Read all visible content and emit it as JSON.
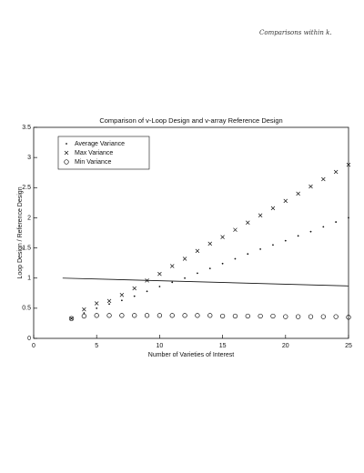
{
  "chart_data": {
    "type": "scatter",
    "title": "Comparison of v-Loop Design and v-array Reference Design",
    "xlabel": "Number of Varieties of Interest",
    "ylabel": "Loop Design / Reference Design",
    "annotation": "Comparisons within k.",
    "xlim": [
      0,
      25
    ],
    "ylim": [
      0,
      3.5
    ],
    "xticks": [
      0,
      5,
      10,
      15,
      20,
      25
    ],
    "yticks": [
      0,
      0.5,
      1,
      1.5,
      2,
      2.5,
      3,
      3.5
    ],
    "legend": "upper left",
    "x": [
      3,
      4,
      5,
      6,
      7,
      8,
      9,
      10,
      11,
      12,
      13,
      14,
      15,
      16,
      17,
      18,
      19,
      20,
      21,
      22,
      23,
      24,
      25
    ],
    "series": [
      {
        "name": "Average Variance",
        "marker": "dot",
        "color": "#111111",
        "values": [
          0.33,
          0.42,
          0.5,
          0.57,
          0.63,
          0.7,
          0.78,
          0.86,
          0.93,
          1.0,
          1.08,
          1.16,
          1.24,
          1.32,
          1.4,
          1.48,
          1.55,
          1.62,
          1.7,
          1.77,
          1.85,
          1.93,
          2.0
        ]
      },
      {
        "name": "Max Variance",
        "marker": "x",
        "color": "#111111",
        "values": [
          0.33,
          0.48,
          0.58,
          0.62,
          0.72,
          0.83,
          0.96,
          1.07,
          1.2,
          1.32,
          1.45,
          1.57,
          1.68,
          1.8,
          1.92,
          2.04,
          2.16,
          2.28,
          2.4,
          2.52,
          2.64,
          2.76,
          2.88
        ]
      },
      {
        "name": "Min Variance",
        "marker": "circle",
        "color": "#111111",
        "values": [
          0.33,
          0.37,
          0.38,
          0.38,
          0.38,
          0.38,
          0.38,
          0.38,
          0.38,
          0.38,
          0.38,
          0.38,
          0.37,
          0.37,
          0.37,
          0.37,
          0.37,
          0.36,
          0.36,
          0.36,
          0.36,
          0.36,
          0.35
        ]
      }
    ],
    "reference_line": {
      "x": [
        2.3,
        25
      ],
      "values": [
        1.0,
        0.87
      ],
      "color": "#111111"
    }
  }
}
